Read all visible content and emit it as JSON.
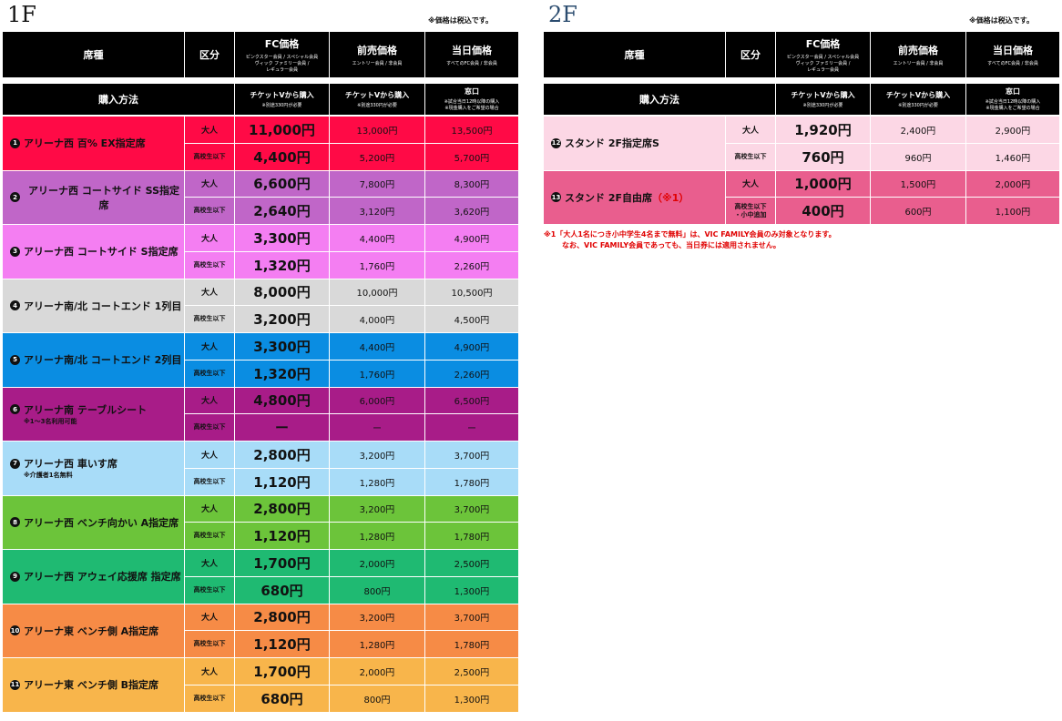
{
  "floors": [
    {
      "title": "1F",
      "note": "※価格は税込です。",
      "header": {
        "seat": "席種",
        "category": "区分",
        "fc": {
          "title": "FC価格",
          "sub": [
            "ピンクスター会員 / スペシャル会員",
            "ヴィック ファミリー会員 /",
            "レギュラー会員"
          ]
        },
        "presale": {
          "title": "前売価格",
          "sub": [
            "エントリー会員 / 非会員"
          ]
        },
        "day": {
          "title": "当日価格",
          "sub": [
            "すべてのFC会員 / 非会員"
          ]
        }
      },
      "purchase": {
        "label": "購入方法",
        "fc": {
          "title": "チケットVから購入",
          "sub": [
            "※別途330円が必要"
          ]
        },
        "presale": {
          "title": "チケットVから購入",
          "sub": [
            "※別途330円が必要"
          ]
        },
        "day": {
          "title": "窓口",
          "sub": [
            "※試合当日12時以降の購入",
            "※現金購入をご希望の場合"
          ]
        }
      },
      "rows": [
        {
          "no": "1",
          "name": "アリーナ西 百% EX指定席",
          "color": "#ff0a46",
          "prices": [
            {
              "category": [
                "大人"
              ],
              "fc": "11,000円",
              "presale": "13,000円",
              "day": "13,500円"
            },
            {
              "category": [
                "高校生以下"
              ],
              "fc": "4,400円",
              "presale": "5,200円",
              "day": "5,700円"
            }
          ]
        },
        {
          "no": "2",
          "name": "アリーナ西 コートサイド SS指定席",
          "color": "#c066c8",
          "prices": [
            {
              "category": [
                "大人"
              ],
              "fc": "6,600円",
              "presale": "7,800円",
              "day": "8,300円"
            },
            {
              "category": [
                "高校生以下"
              ],
              "fc": "2,640円",
              "presale": "3,120円",
              "day": "3,620円"
            }
          ]
        },
        {
          "no": "3",
          "name": "アリーナ西 コートサイド S指定席",
          "color": "#f47ef2",
          "prices": [
            {
              "category": [
                "大人"
              ],
              "fc": "3,300円",
              "presale": "4,400円",
              "day": "4,900円"
            },
            {
              "category": [
                "高校生以下"
              ],
              "fc": "1,320円",
              "presale": "1,760円",
              "day": "2,260円"
            }
          ]
        },
        {
          "no": "4",
          "name": "アリーナ南/北 コートエンド 1列目",
          "color": "#d9d9d9",
          "prices": [
            {
              "category": [
                "大人"
              ],
              "fc": "8,000円",
              "presale": "10,000円",
              "day": "10,500円"
            },
            {
              "category": [
                "高校生以下"
              ],
              "fc": "3,200円",
              "presale": "4,000円",
              "day": "4,500円"
            }
          ]
        },
        {
          "no": "5",
          "name": "アリーナ南/北 コートエンド 2列目",
          "color": "#0a8de2",
          "prices": [
            {
              "category": [
                "大人"
              ],
              "fc": "3,300円",
              "presale": "4,400円",
              "day": "4,900円"
            },
            {
              "category": [
                "高校生以下"
              ],
              "fc": "1,320円",
              "presale": "1,760円",
              "day": "2,260円"
            }
          ]
        },
        {
          "no": "6",
          "name": "アリーナ南 テーブルシート",
          "note": "※1～3名利用可能",
          "color": "#a81c88",
          "prices": [
            {
              "category": [
                "大人"
              ],
              "fc": "4,800円",
              "presale": "6,000円",
              "day": "6,500円"
            },
            {
              "category": [
                "高校生以下"
              ],
              "fc": "ー",
              "presale": "ー",
              "day": "ー"
            }
          ]
        },
        {
          "no": "7",
          "name": "アリーナ西 車いす席",
          "note": "※介護者1名無料",
          "color": "#a8dcf8",
          "prices": [
            {
              "category": [
                "大人"
              ],
              "fc": "2,800円",
              "presale": "3,200円",
              "day": "3,700円"
            },
            {
              "category": [
                "高校生以下"
              ],
              "fc": "1,120円",
              "presale": "1,280円",
              "day": "1,780円"
            }
          ]
        },
        {
          "no": "8",
          "name": "アリーナ西 ベンチ向かい A指定席",
          "color": "#6cc43a",
          "prices": [
            {
              "category": [
                "大人"
              ],
              "fc": "2,800円",
              "presale": "3,200円",
              "day": "3,700円"
            },
            {
              "category": [
                "高校生以下"
              ],
              "fc": "1,120円",
              "presale": "1,280円",
              "day": "1,780円"
            }
          ]
        },
        {
          "no": "9",
          "name": "アリーナ西 アウェイ応援席 指定席",
          "color": "#1fba72",
          "prices": [
            {
              "category": [
                "大人"
              ],
              "fc": "1,700円",
              "presale": "2,000円",
              "day": "2,500円"
            },
            {
              "category": [
                "高校生以下"
              ],
              "fc": "680円",
              "presale": "800円",
              "day": "1,300円"
            }
          ]
        },
        {
          "no": "10",
          "name": "アリーナ東 ベンチ側 A指定席",
          "color": "#f68b46",
          "prices": [
            {
              "category": [
                "大人"
              ],
              "fc": "2,800円",
              "presale": "3,200円",
              "day": "3,700円"
            },
            {
              "category": [
                "高校生以下"
              ],
              "fc": "1,120円",
              "presale": "1,280円",
              "day": "1,780円"
            }
          ]
        },
        {
          "no": "11",
          "name": "アリーナ東 ベンチ側 B指定席",
          "color": "#f8b54b",
          "prices": [
            {
              "category": [
                "大人"
              ],
              "fc": "1,700円",
              "presale": "2,000円",
              "day": "2,500円"
            },
            {
              "category": [
                "高校生以下"
              ],
              "fc": "680円",
              "presale": "800円",
              "day": "1,300円"
            }
          ]
        }
      ]
    },
    {
      "title": "2F",
      "note": "※価格は税込です。",
      "header": {
        "seat": "席種",
        "category": "区分",
        "fc": {
          "title": "FC価格",
          "sub": [
            "ピンクスター会員 / スペシャル会員",
            "ヴィック ファミリー会員 /",
            "レギュラー会員"
          ]
        },
        "presale": {
          "title": "前売価格",
          "sub": [
            "エントリー会員 / 非会員"
          ]
        },
        "day": {
          "title": "当日価格",
          "sub": [
            "すべてのFC会員 / 非会員"
          ]
        }
      },
      "purchase": {
        "label": "購入方法",
        "fc": {
          "title": "チケットVから購入",
          "sub": [
            "※別途330円が必要"
          ]
        },
        "presale": {
          "title": "チケットVから購入",
          "sub": [
            "※別途330円が必要"
          ]
        },
        "day": {
          "title": "窓口",
          "sub": [
            "※試合当日12時以降の購入",
            "※現金購入をご希望の場合"
          ]
        }
      },
      "rows": [
        {
          "no": "12",
          "name": "スタンド 2F指定席S",
          "color": "#fcd7e5",
          "prices": [
            {
              "category": [
                "大人"
              ],
              "fc": "1,920円",
              "presale": "2,400円",
              "day": "2,900円"
            },
            {
              "category": [
                "高校生以下"
              ],
              "fc": "760円",
              "presale": "960円",
              "day": "1,460円"
            }
          ]
        },
        {
          "no": "13",
          "name": "スタンド 2F自由席",
          "mark": "（※1）",
          "color": "#e95e8e",
          "prices": [
            {
              "category": [
                "大人"
              ],
              "fc": "1,000円",
              "presale": "1,500円",
              "day": "2,000円"
            },
            {
              "category": [
                "高校生以下",
                "・小中追加"
              ],
              "fc": "400円",
              "presale": "600円",
              "day": "1,100円"
            }
          ]
        }
      ],
      "footnote": [
        "※1「大人1名につき小中学生4名まで無料」は、VIC FAMILY会員のみ対象となります。",
        "なお、VIC FAMILY会員であっても、当日券には適用されません。"
      ]
    }
  ]
}
